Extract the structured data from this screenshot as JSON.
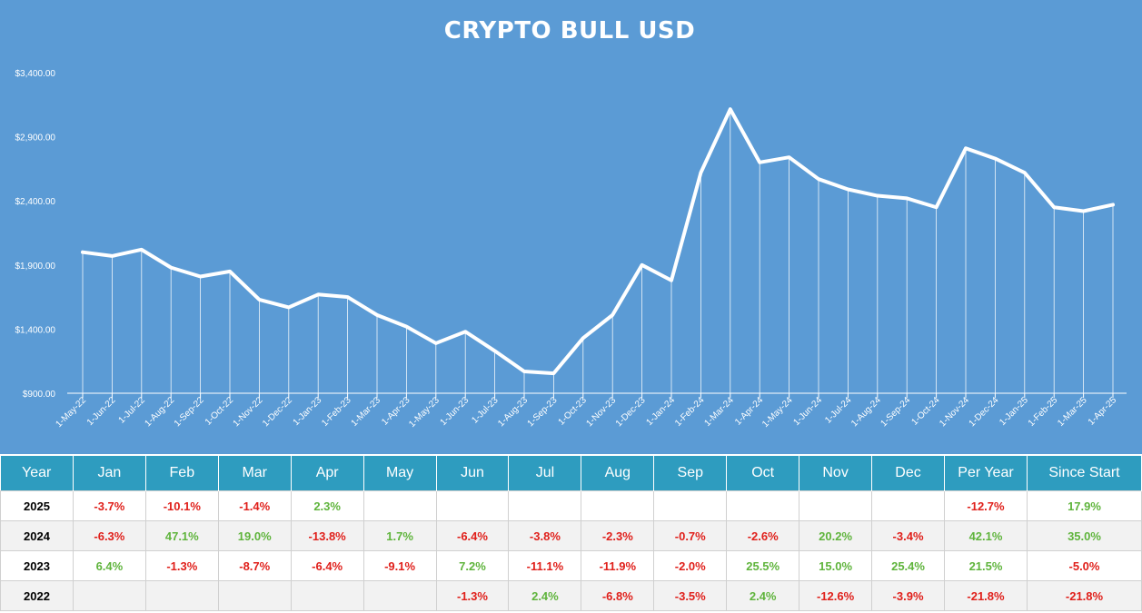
{
  "chart_data": {
    "type": "line",
    "title": "CRYPTO BULL USD",
    "y_tick_labels": [
      "$900.00",
      "$1,400.00",
      "$1,900.00",
      "$2,400.00",
      "$2,900.00",
      "$3,400.00"
    ],
    "ylim": [
      900,
      3400
    ],
    "grid": false,
    "drop_lines": true,
    "colors": {
      "background": "#5b9bd5",
      "line": "#ffffff"
    },
    "x": [
      "1-May-22",
      "1-Jun-22",
      "1-Jul-22",
      "1-Aug-22",
      "1-Sep-22",
      "1-Oct-22",
      "1-Nov-22",
      "1-Dec-22",
      "1-Jan-23",
      "1-Feb-23",
      "1-Mar-23",
      "1-Apr-23",
      "1-May-23",
      "1-Jun-23",
      "1-Jul-23",
      "1-Aug-23",
      "1-Sep-23",
      "1-Oct-23",
      "1-Nov-23",
      "1-Dec-23",
      "1-Jan-24",
      "1-Feb-24",
      "1-Mar-24",
      "1-Apr-24",
      "1-May-24",
      "1-Jun-24",
      "1-Jul-24",
      "1-Aug-24",
      "1-Sep-24",
      "1-Oct-24",
      "1-Nov-24",
      "1-Dec-24",
      "1-Jan-25",
      "1-Feb-25",
      "1-Mar-25",
      "1-Apr-25"
    ],
    "values": [
      2000,
      1970,
      2020,
      1880,
      1810,
      1850,
      1630,
      1570,
      1670,
      1650,
      1510,
      1420,
      1290,
      1380,
      1230,
      1070,
      1055,
      1330,
      1510,
      1900,
      1780,
      2620,
      3115,
      2700,
      2740,
      2570,
      2490,
      2440,
      2420,
      2350,
      2810,
      2730,
      2620,
      2350,
      2320,
      2370
    ]
  },
  "table": {
    "headers": [
      "Year",
      "Jan",
      "Feb",
      "Mar",
      "Apr",
      "May",
      "Jun",
      "Jul",
      "Aug",
      "Sep",
      "Oct",
      "Nov",
      "Dec",
      "Per Year",
      "Since Start"
    ],
    "rows": [
      {
        "year": "2025",
        "cells": [
          "-3.7%",
          "-10.1%",
          "-1.4%",
          "2.3%",
          "",
          "",
          "",
          "",
          "",
          "",
          "",
          "",
          "-12.7%",
          "17.9%"
        ]
      },
      {
        "year": "2024",
        "cells": [
          "-6.3%",
          "47.1%",
          "19.0%",
          "-13.8%",
          "1.7%",
          "-6.4%",
          "-3.8%",
          "-2.3%",
          "-0.7%",
          "-2.6%",
          "20.2%",
          "-3.4%",
          "42.1%",
          "35.0%"
        ]
      },
      {
        "year": "2023",
        "cells": [
          "6.4%",
          "-1.3%",
          "-8.7%",
          "-6.4%",
          "-9.1%",
          "7.2%",
          "-11.1%",
          "-11.9%",
          "-2.0%",
          "25.5%",
          "15.0%",
          "25.4%",
          "21.5%",
          "-5.0%"
        ]
      },
      {
        "year": "2022",
        "cells": [
          "",
          "",
          "",
          "",
          "",
          "-1.3%",
          "2.4%",
          "-6.8%",
          "-3.5%",
          "2.4%",
          "-12.6%",
          "-3.9%",
          "-21.8%",
          "-21.8%"
        ]
      }
    ],
    "colors": {
      "header_bg": "#2e9cbf",
      "positive": "#5fb43c",
      "negative": "#e0201b"
    }
  }
}
